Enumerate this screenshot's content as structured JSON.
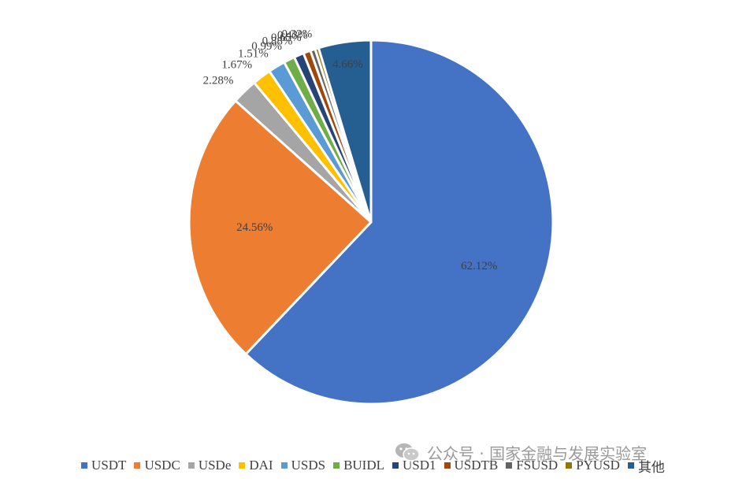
{
  "chart_data": {
    "type": "pie",
    "title": "",
    "start_angle_deg": 0,
    "direction": "clockwise",
    "slices": [
      {
        "name": "USDT",
        "value": 62.12,
        "label": "62.12%",
        "color": "#4472C4"
      },
      {
        "name": "USDC",
        "value": 24.56,
        "label": "24.56%",
        "color": "#ED7D31"
      },
      {
        "name": "USDe",
        "value": 2.28,
        "label": "2.28%",
        "color": "#A5A5A5"
      },
      {
        "name": "DAI",
        "value": 1.67,
        "label": "1.67%",
        "color": "#FFC000"
      },
      {
        "name": "USDS",
        "value": 1.51,
        "label": "1.51%",
        "color": "#5B9BD5"
      },
      {
        "name": "BUIDL",
        "value": 0.99,
        "label": "0.99%",
        "color": "#70AD47"
      },
      {
        "name": "USD1",
        "value": 0.88,
        "label": "0.88%",
        "color": "#264478"
      },
      {
        "name": "USDTB",
        "value": 0.65,
        "label": "0.65%",
        "color": "#9E480E"
      },
      {
        "name": "FSUSD",
        "value": 0.43,
        "label": "0.43%",
        "color": "#636363"
      },
      {
        "name": "PYUSD",
        "value": 0.32,
        "label": "0.32%",
        "color": "#997300"
      },
      {
        "name": "其他",
        "value": 4.66,
        "label": "4.66%",
        "color": "#255E91"
      }
    ],
    "legend_position": "bottom"
  },
  "watermark": {
    "text": "公众号 · 国家金融与发展实验室",
    "icon": "wechat-icon"
  }
}
